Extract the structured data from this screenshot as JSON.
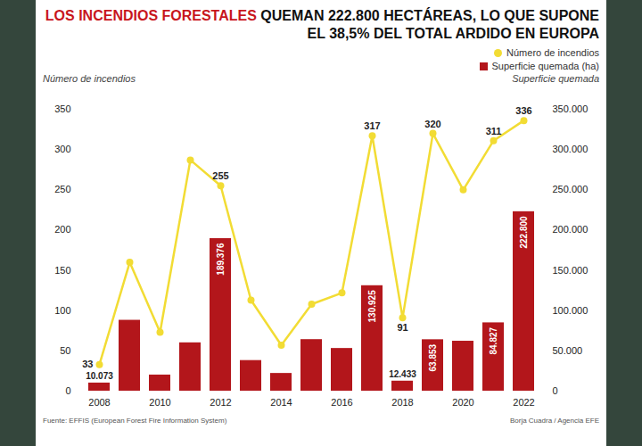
{
  "chart_data": {
    "type": "bar",
    "title": "LOS INCENDIOS FORESTALES QUEMAN 222.800 HECTÁREAS, LO QUE SUPONE EL 38,5% DEL TOTAL ARDIDO EN EUROPA",
    "categories": [
      "2008",
      null,
      "2010",
      null,
      "2012",
      null,
      "2014",
      null,
      "2016",
      null,
      "2018",
      null,
      "2020",
      null,
      "2022"
    ],
    "series": [
      {
        "name": "Número de incendios",
        "type": "line",
        "color": "#f2dc34",
        "marker": "circle",
        "values": [
          33,
          160,
          73,
          287,
          255,
          113,
          57,
          108,
          122,
          317,
          91,
          320,
          250,
          311,
          336
        ],
        "value_labels": [
          "33",
          null,
          null,
          null,
          "255",
          null,
          null,
          null,
          null,
          "317",
          "91",
          "320",
          null,
          "311",
          "336"
        ]
      },
      {
        "name": "Superficie quemada (ha)",
        "type": "bar",
        "color": "#b3161b",
        "axis": "y2",
        "values": [
          10073,
          88000,
          20000,
          60000,
          189376,
          38000,
          22000,
          64000,
          53000,
          130925,
          12433,
          63853,
          62000,
          84827,
          222800
        ],
        "value_labels": [
          "10.073",
          null,
          null,
          null,
          "189.376",
          null,
          null,
          null,
          null,
          "130.925",
          "12.433",
          "63.853",
          null,
          "84.827",
          "222.800"
        ]
      }
    ],
    "ylabel": "Número de incendios",
    "y2label": "Superficie quemada",
    "ylim": [
      0,
      350
    ],
    "yticks": [
      0,
      50,
      100,
      150,
      200,
      250,
      300,
      350
    ],
    "y2lim": [
      0,
      350000
    ],
    "y2ticks": [
      0,
      {
        "value": 50000,
        "label": "50.000"
      },
      {
        "value": 100000,
        "label": "100.000"
      },
      {
        "value": 150000,
        "label": "150.000"
      },
      {
        "value": 200000,
        "label": "200.000"
      },
      {
        "value": 250000,
        "label": "250.000"
      },
      {
        "value": 300000,
        "label": "300.000"
      },
      {
        "value": 350000,
        "label": "350.000"
      }
    ],
    "grid": false,
    "legend": "top-right",
    "data_labels": true,
    "annotations": [
      "Fuente: EFFIS (European Forest Fire Information System)",
      "Borja Cuadra / Agencia EFE"
    ]
  }
}
